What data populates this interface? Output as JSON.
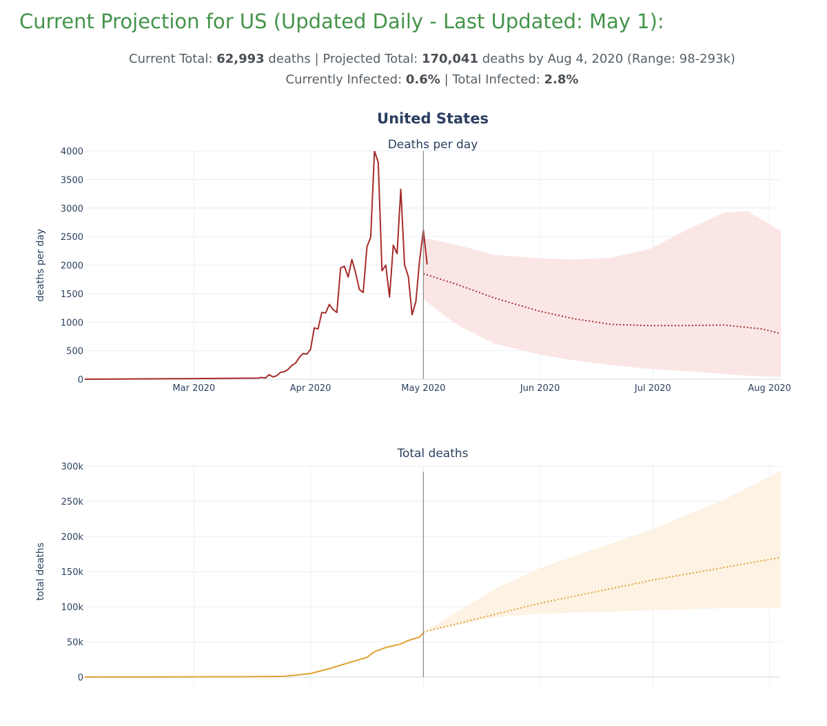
{
  "page": {
    "title": "Current Projection for US (Updated Daily - Last Updated: May 1):"
  },
  "summary": {
    "current_total_label": "Current Total:",
    "current_total_value": "62,993",
    "deaths_word_1": "deaths",
    "sep": "|",
    "projected_total_label": "Projected Total:",
    "projected_total_value": "170,041",
    "projected_suffix": "deaths by Aug 4, 2020 (Range: 98-293k)",
    "currently_infected_label": "Currently Infected:",
    "currently_infected_value": "0.6%",
    "total_infected_label": "Total Infected:",
    "total_infected_value": "2.8%"
  },
  "colors": {
    "daily_line": "#a52a2a",
    "daily_band": "#fbe6e6",
    "total_line": "#e0a030",
    "total_band": "#fdf2e3",
    "divider": "#888888",
    "grid": "#e9eef3",
    "tick_text": "#2a3f5f"
  },
  "chart_data": [
    {
      "type": "line",
      "figure_title": "United States",
      "title": "Deaths per day",
      "ylabel": "deaths per day",
      "xlabel": "",
      "ylim": [
        0,
        4000
      ],
      "x_range": [
        "2020-02-01",
        "2020-08-04"
      ],
      "y_ticks": [
        0,
        500,
        1000,
        1500,
        2000,
        2500,
        3000,
        3500,
        4000
      ],
      "y_tick_labels": [
        "0",
        "500",
        "1000",
        "1500",
        "2000",
        "2500",
        "3000",
        "3500",
        "4000"
      ],
      "x_ticks": [
        "2020-03-01",
        "2020-04-01",
        "2020-05-01",
        "2020-06-01",
        "2020-07-01",
        "2020-08-01"
      ],
      "x_tick_labels": [
        "Mar 2020",
        "Apr 2020",
        "May 2020",
        "Jun 2020",
        "Jul 2020",
        "Aug 2020"
      ],
      "divider_date": "2020-05-01",
      "series": [
        {
          "name": "observed",
          "style": "solid",
          "x": [
            "2020-02-01",
            "2020-03-01",
            "2020-03-18",
            "2020-03-19",
            "2020-03-20",
            "2020-03-21",
            "2020-03-22",
            "2020-03-23",
            "2020-03-24",
            "2020-03-25",
            "2020-03-26",
            "2020-03-27",
            "2020-03-28",
            "2020-03-29",
            "2020-03-30",
            "2020-03-31",
            "2020-04-01",
            "2020-04-02",
            "2020-04-03",
            "2020-04-04",
            "2020-04-05",
            "2020-04-06",
            "2020-04-07",
            "2020-04-08",
            "2020-04-09",
            "2020-04-10",
            "2020-04-11",
            "2020-04-12",
            "2020-04-13",
            "2020-04-14",
            "2020-04-15",
            "2020-04-16",
            "2020-04-17",
            "2020-04-18",
            "2020-04-19",
            "2020-04-20",
            "2020-04-21",
            "2020-04-22",
            "2020-04-23",
            "2020-04-24",
            "2020-04-25",
            "2020-04-26",
            "2020-04-27",
            "2020-04-28",
            "2020-04-29",
            "2020-04-30"
          ],
          "values": [
            0,
            10,
            20,
            30,
            20,
            80,
            40,
            60,
            120,
            130,
            170,
            240,
            280,
            380,
            450,
            440,
            520,
            900,
            880,
            1170,
            1160,
            1310,
            1220,
            1170,
            1950,
            1980,
            1790,
            2100,
            1860,
            1570,
            1520,
            2320,
            2490,
            4000,
            3800,
            1900,
            2000,
            1440,
            2350,
            2200,
            3330,
            2000,
            1800,
            1130,
            1360,
            2090
          ]
        },
        {
          "name": "observed_tail",
          "style": "solid",
          "x": [
            "2020-04-30",
            "2020-05-01",
            "2020-05-02"
          ],
          "values": [
            2090,
            2610,
            2010
          ]
        },
        {
          "name": "projected",
          "style": "dotted",
          "x": [
            "2020-05-01",
            "2020-05-10",
            "2020-05-20",
            "2020-06-01",
            "2020-06-10",
            "2020-06-20",
            "2020-06-30",
            "2020-07-10",
            "2020-07-20",
            "2020-07-30",
            "2020-08-04"
          ],
          "values": [
            1850,
            1660,
            1420,
            1190,
            1060,
            960,
            940,
            940,
            950,
            880,
            800
          ]
        }
      ],
      "band": {
        "name": "range",
        "x": [
          "2020-05-01",
          "2020-05-10",
          "2020-05-20",
          "2020-06-01",
          "2020-06-10",
          "2020-06-20",
          "2020-06-30",
          "2020-07-10",
          "2020-07-20",
          "2020-07-26",
          "2020-08-04"
        ],
        "upper": [
          2480,
          2350,
          2180,
          2120,
          2100,
          2130,
          2280,
          2620,
          2920,
          2950,
          2600
        ],
        "lower": [
          1400,
          950,
          620,
          430,
          330,
          250,
          180,
          140,
          90,
          60,
          40
        ]
      }
    },
    {
      "type": "line",
      "title": "Total deaths",
      "ylabel": "total deaths",
      "xlabel": "",
      "ylim": [
        0,
        300000
      ],
      "x_range": [
        "2020-02-01",
        "2020-08-04"
      ],
      "y_ticks": [
        0,
        50000,
        100000,
        150000,
        200000,
        250000,
        300000
      ],
      "y_tick_labels": [
        "0",
        "50k",
        "100k",
        "150k",
        "200k",
        "250k",
        "300k"
      ],
      "divider_date": "2020-05-01",
      "series": [
        {
          "name": "observed",
          "style": "solid",
          "x": [
            "2020-02-01",
            "2020-03-15",
            "2020-03-25",
            "2020-04-01",
            "2020-04-06",
            "2020-04-11",
            "2020-04-16",
            "2020-04-18",
            "2020-04-21",
            "2020-04-25",
            "2020-04-27",
            "2020-04-30",
            "2020-05-01"
          ],
          "values": [
            0,
            500,
            1000,
            5000,
            12000,
            20000,
            28000,
            36000,
            42000,
            47000,
            52000,
            57000,
            63000
          ]
        },
        {
          "name": "projected",
          "style": "dotted",
          "x": [
            "2020-05-01",
            "2020-06-01",
            "2020-07-01",
            "2020-08-04"
          ],
          "values": [
            64000,
            105000,
            138000,
            170041
          ]
        }
      ],
      "band": {
        "name": "range",
        "x": [
          "2020-05-01",
          "2020-05-20",
          "2020-06-01",
          "2020-07-01",
          "2020-07-21",
          "2020-08-04"
        ],
        "upper": [
          64000,
          125000,
          155000,
          210000,
          255000,
          293000
        ],
        "lower": [
          64000,
          85000,
          90000,
          95000,
          98000,
          98000
        ]
      }
    }
  ]
}
